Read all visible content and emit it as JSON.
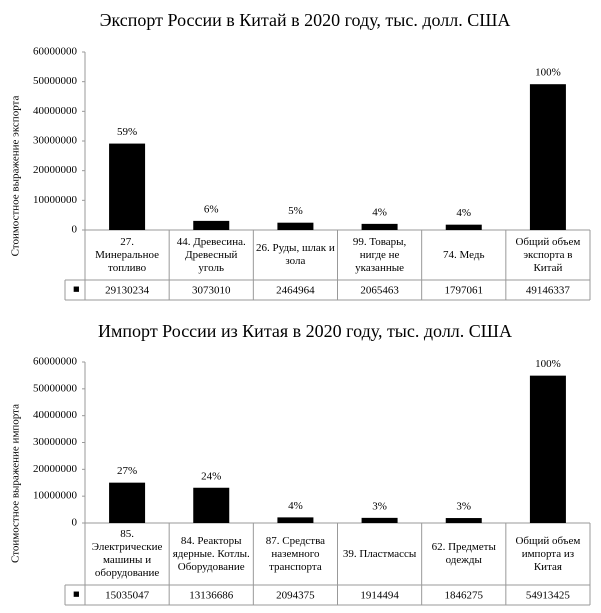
{
  "chart_data": [
    {
      "type": "bar",
      "title": "Экспорт России в Китай в 2020 году, тыс. долл. США",
      "y_label": "Стоимостное выражение экспорта",
      "categories": [
        "27. Минеральное топливо",
        "44. Древесина. Древесный уголь",
        "26. Руды, шлак и зола",
        "99. Товары, нигде не указанные",
        "74. Медь",
        "Общий объем экспорта в Китай"
      ],
      "values": [
        29130234,
        3073010,
        2464964,
        2065463,
        1797061,
        49146337
      ],
      "annotations": [
        "59%",
        "6%",
        "5%",
        "4%",
        "4%",
        "100%"
      ],
      "color": "#000000",
      "legend_marker": "■",
      "ylim": [
        0,
        60000000
      ],
      "yticks": [
        0,
        10000000,
        20000000,
        30000000,
        40000000,
        50000000,
        60000000
      ]
    },
    {
      "type": "bar",
      "title": "Импорт России из Китая в 2020 году, тыс. долл. США",
      "y_label": "Стоимостное выражение импорта",
      "categories": [
        "85. Электрические машины и оборудование",
        "84. Реакторы ядерные. Котлы. Оборудование",
        "87. Средства наземного транспорта",
        "39. Пластмассы",
        "62. Предметы одежды",
        "Общий объем импорта из Китая"
      ],
      "values": [
        15035047,
        13136686,
        2094375,
        1914494,
        1846275,
        54913425
      ],
      "annotations": [
        "27%",
        "24%",
        "4%",
        "3%",
        "3%",
        "100%"
      ],
      "color": "#000000",
      "legend_marker": "■",
      "ylim": [
        0,
        60000000
      ],
      "yticks": [
        0,
        10000000,
        20000000,
        30000000,
        40000000,
        50000000,
        60000000
      ]
    }
  ]
}
